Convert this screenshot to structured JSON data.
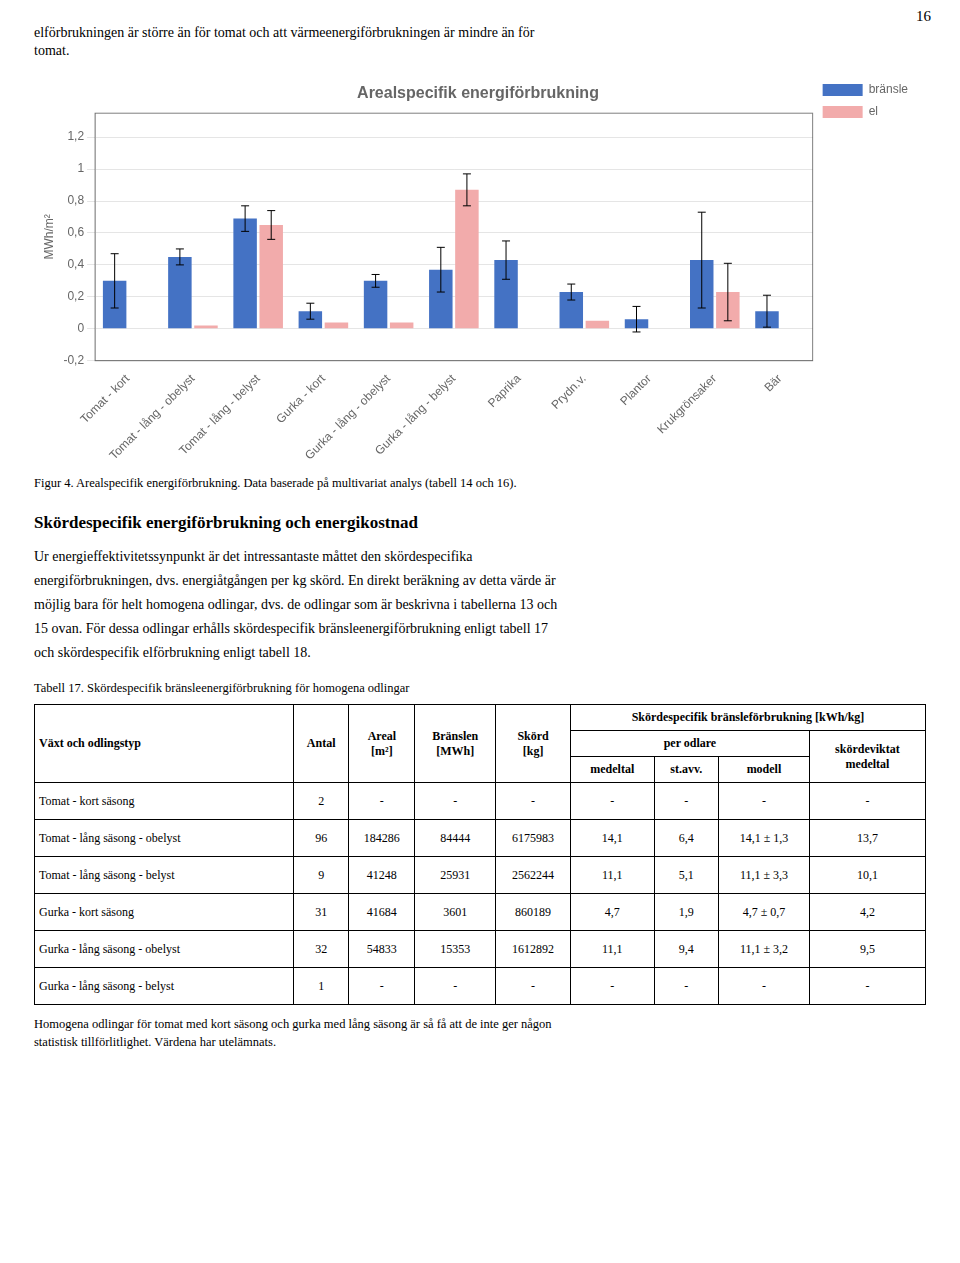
{
  "page_number": "16",
  "top_text": [
    "elförbrukningen är större än för tomat och att värmeenergiförbrukningen är mindre än för",
    "tomat."
  ],
  "chart_data": {
    "type": "bar",
    "title": "Arealspecifik energiförbrukning",
    "ylabel": "MWh/m²",
    "categories": [
      "Tomat - kort",
      "Tomat - lång - obelyst",
      "Tomat - lång - belyst",
      "Gurka - kort",
      "Gurka - lång - obelyst",
      "Gurka - lång - belyst",
      "Paprika",
      "Prydn.v.",
      "Plantor",
      "Krukgrönsaker",
      "Bär"
    ],
    "series": [
      {
        "name": "bränsle",
        "color": "#4472C4",
        "values": [
          0.3,
          0.45,
          0.69,
          0.11,
          0.3,
          0.37,
          0.43,
          0.23,
          0.06,
          0.43,
          0.11
        ],
        "errors": [
          0.17,
          0.05,
          0.08,
          0.05,
          0.04,
          0.14,
          0.12,
          0.05,
          0.08,
          0.3,
          0.1
        ]
      },
      {
        "name": "el",
        "color": "#F2ABAB",
        "values": [
          null,
          0.02,
          0.65,
          0.04,
          0.04,
          0.87,
          null,
          0.05,
          null,
          0.23,
          null
        ],
        "errors": [
          null,
          null,
          0.09,
          null,
          null,
          0.1,
          null,
          null,
          null,
          0.18,
          null
        ]
      }
    ],
    "ylim": [
      -0.2,
      1.35
    ],
    "yticks": [
      {
        "value": -0.2,
        "label": "-0,2"
      },
      0,
      {
        "value": 0.2,
        "label": "0,2"
      },
      {
        "value": 0.4,
        "label": "0,4"
      },
      {
        "value": 0.6,
        "label": "0,6"
      },
      {
        "value": 0.8,
        "label": "0,8"
      },
      1,
      {
        "value": 1.2,
        "label": "1,2"
      }
    ],
    "grid": true,
    "legend": "upper right"
  },
  "figcaption": "Figur 4. Arealspecifik energiförbrukning. Data baserade på multivariat analys (tabell 14 och 16).",
  "section_title": "Skördespecifik energiförbrukning och energikostnad",
  "body_lines": [
    "Ur energieffektivitetssynpunkt är det intressantaste måttet den skördespecifika",
    "energiförbrukningen, dvs. energiåtgången per kg skörd. En direkt beräkning av detta värde är",
    "möjlig bara för helt homogena odlingar, dvs. de odlingar som är beskrivna i tabellerna 13 och",
    "15 ovan. För dessa odlingar erhålls skördespecifik bränsleenergiförbrukning enligt tabell 17",
    "och skördespecifik elförbrukning enligt tabell 18."
  ],
  "table": {
    "caption": "Tabell 17. Skördespecifik bränsleenergiförbrukning för homogena odlingar",
    "group_header": "Skördespecifik bränsleförbrukning [kWh/kg]",
    "subgroup_header": "per odlare",
    "columns": [
      "Växt och odlingstyp",
      "Antal",
      "Areal\n[m²]",
      "Bränslen\n[MWh]",
      "Skörd\n[kg]",
      "medeltal",
      "st.avv.",
      "modell",
      "skördeviktat\nmedeltal"
    ],
    "rows": [
      [
        "Tomat - kort säsong",
        "2",
        "-",
        "-",
        "-",
        "-",
        "-",
        "-",
        "-"
      ],
      [
        "Tomat - lång säsong - obelyst",
        "96",
        "184286",
        "84444",
        "6175983",
        "14,1",
        "6,4",
        "14,1 ± 1,3",
        "13,7"
      ],
      [
        "Tomat - lång säsong - belyst",
        "9",
        "41248",
        "25931",
        "2562244",
        "11,1",
        "5,1",
        "11,1 ± 3,3",
        "10,1"
      ],
      [
        "Gurka - kort säsong",
        "31",
        "41684",
        "3601",
        "860189",
        "4,7",
        "1,9",
        "4,7 ± 0,7",
        "4,2"
      ],
      [
        "Gurka - lång säsong - obelyst",
        "32",
        "54833",
        "15353",
        "1612892",
        "11,1",
        "9,4",
        "11,1 ± 3,2",
        "9,5"
      ],
      [
        "Gurka - lång säsong - belyst",
        "1",
        "-",
        "-",
        "-",
        "-",
        "-",
        "-",
        "-"
      ]
    ],
    "footer": [
      "Homogena odlingar för tomat med kort säsong och gurka med lång säsong är så få att de inte ger någon",
      "statistisk tillförlitlighet. Värdena har utelämnats."
    ]
  }
}
